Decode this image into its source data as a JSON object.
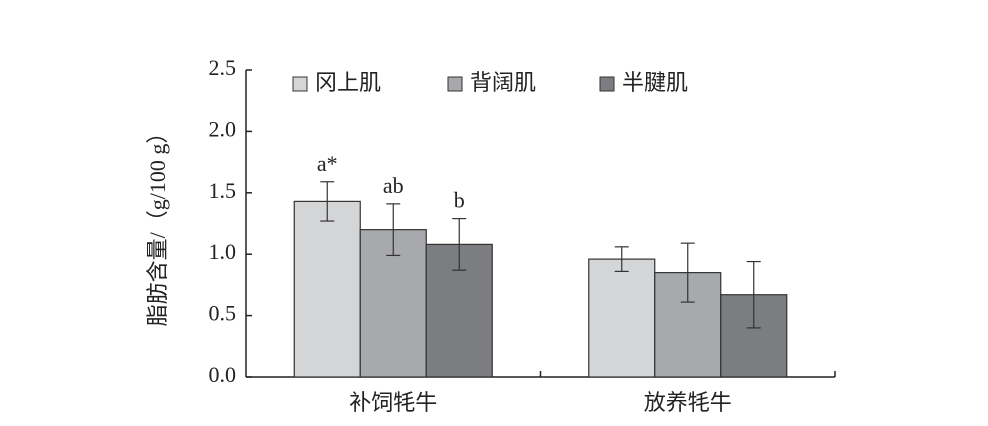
{
  "chart_data": {
    "type": "bar",
    "ylabel": "脂肪含量/（g/100 g）",
    "categories": [
      "补饲牦牛",
      "放养牦牛"
    ],
    "series": [
      {
        "name": "冈上肌",
        "color": "#d4d5d7",
        "values": [
          1.43,
          0.96
        ],
        "errors": [
          0.16,
          0.1
        ],
        "significance": [
          "a*",
          null
        ]
      },
      {
        "name": "背阔肌",
        "color": "#a8a9ac",
        "values": [
          1.2,
          0.85
        ],
        "errors": [
          0.21,
          0.24
        ],
        "significance": [
          "ab",
          null
        ]
      },
      {
        "name": "半腱肌",
        "color": "#7c7d81",
        "values": [
          1.08,
          0.67
        ],
        "errors": [
          0.21,
          0.27
        ],
        "significance": [
          "b",
          null
        ]
      }
    ],
    "ylim": [
      0,
      2.5
    ],
    "yticks": [
      {
        "value": 0,
        "label": "0.0"
      },
      0.5,
      {
        "value": 1,
        "label": "1.0"
      },
      1.5,
      {
        "value": 2,
        "label": "2.0"
      },
      2.5
    ],
    "legend": "top"
  }
}
